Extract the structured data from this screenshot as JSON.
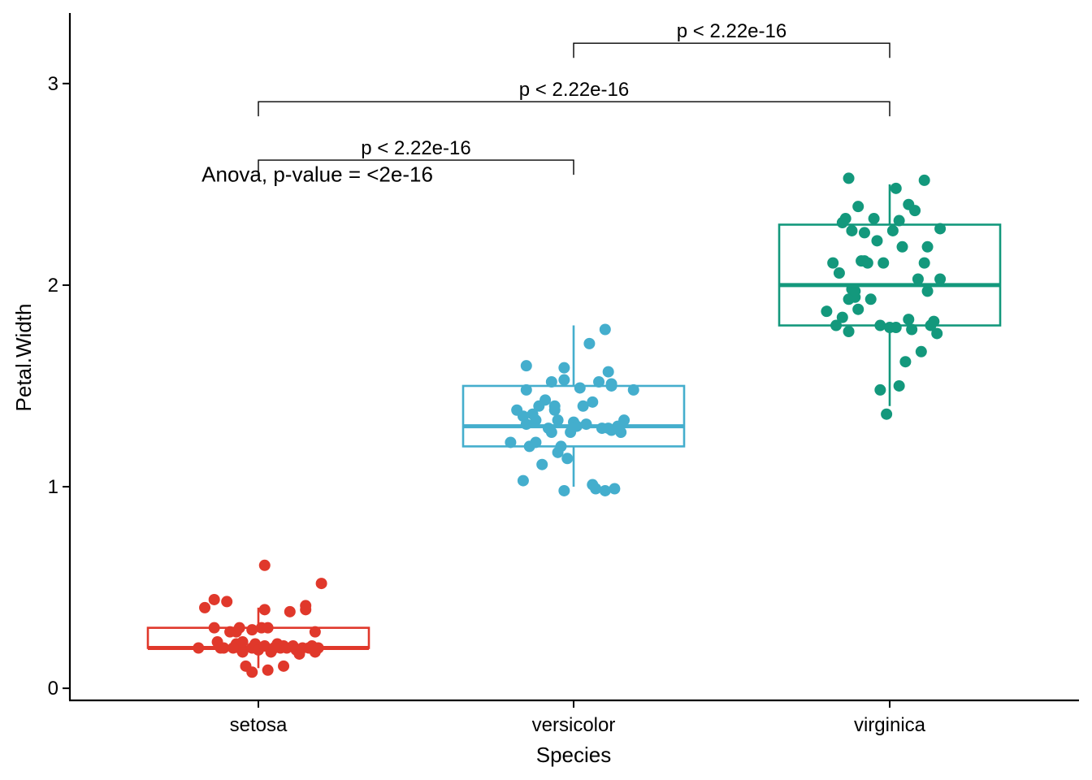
{
  "chart_data": {
    "type": "boxplot",
    "xlabel": "Species",
    "ylabel": "Petal.Width",
    "ylim": [
      -0.06,
      3.35
    ],
    "y_ticks": [
      0,
      1,
      2,
      3
    ],
    "categories": [
      "setosa",
      "versicolor",
      "virginica"
    ],
    "grid": false,
    "legend": "none",
    "series": [
      {
        "category": "setosa",
        "color": "#E0382B",
        "box": {
          "min": 0.1,
          "q1": 0.2,
          "median": 0.2,
          "q3": 0.3,
          "max": 0.4
        },
        "points": [
          {
            "x": -0.19,
            "y": 0.2
          },
          {
            "x": -0.17,
            "y": 0.4
          },
          {
            "x": -0.14,
            "y": 0.3
          },
          {
            "x": -0.12,
            "y": 0.2
          },
          {
            "x": -0.14,
            "y": 0.44
          },
          {
            "x": -0.1,
            "y": 0.43
          },
          {
            "x": -0.09,
            "y": 0.28
          },
          {
            "x": -0.11,
            "y": 0.2
          },
          {
            "x": -0.07,
            "y": 0.22
          },
          {
            "x": -0.06,
            "y": 0.2
          },
          {
            "x": -0.05,
            "y": 0.18
          },
          {
            "x": -0.04,
            "y": 0.11
          },
          {
            "x": -0.07,
            "y": 0.28
          },
          {
            "x": -0.02,
            "y": 0.2
          },
          {
            "x": -0.01,
            "y": 0.22
          },
          {
            "x": -0.02,
            "y": 0.29
          },
          {
            "x": 0.0,
            "y": 0.19
          },
          {
            "x": 0.02,
            "y": 0.21
          },
          {
            "x": -0.05,
            "y": 0.23
          },
          {
            "x": -0.06,
            "y": 0.3
          },
          {
            "x": 0.02,
            "y": 0.61
          },
          {
            "x": 0.01,
            "y": 0.3
          },
          {
            "x": -0.02,
            "y": 0.08
          },
          {
            "x": 0.03,
            "y": 0.3
          },
          {
            "x": 0.04,
            "y": 0.18
          },
          {
            "x": 0.05,
            "y": 0.2
          },
          {
            "x": 0.06,
            "y": 0.22
          },
          {
            "x": 0.03,
            "y": 0.09
          },
          {
            "x": 0.02,
            "y": 0.39
          },
          {
            "x": 0.07,
            "y": 0.2
          },
          {
            "x": 0.08,
            "y": 0.21
          },
          {
            "x": 0.08,
            "y": 0.11
          },
          {
            "x": 0.09,
            "y": 0.2
          },
          {
            "x": 0.1,
            "y": 0.38
          },
          {
            "x": 0.11,
            "y": 0.21
          },
          {
            "x": 0.12,
            "y": 0.19
          },
          {
            "x": 0.13,
            "y": 0.17
          },
          {
            "x": 0.14,
            "y": 0.2
          },
          {
            "x": 0.15,
            "y": 0.41
          },
          {
            "x": 0.15,
            "y": 0.39
          },
          {
            "x": 0.16,
            "y": 0.2
          },
          {
            "x": 0.17,
            "y": 0.21
          },
          {
            "x": 0.18,
            "y": 0.18
          },
          {
            "x": 0.18,
            "y": 0.28
          },
          {
            "x": 0.19,
            "y": 0.2
          },
          {
            "x": 0.2,
            "y": 0.52
          },
          {
            "x": 0.18,
            "y": 0.2
          },
          {
            "x": -0.08,
            "y": 0.2
          },
          {
            "x": -0.13,
            "y": 0.23
          },
          {
            "x": 0.05,
            "y": 0.2
          }
        ]
      },
      {
        "category": "versicolor",
        "color": "#44AECD",
        "box": {
          "min": 1.0,
          "q1": 1.2,
          "median": 1.3,
          "q3": 1.5,
          "max": 1.8
        },
        "points": [
          {
            "x": -0.2,
            "y": 1.22
          },
          {
            "x": -0.18,
            "y": 1.38
          },
          {
            "x": -0.16,
            "y": 1.35
          },
          {
            "x": -0.15,
            "y": 1.48
          },
          {
            "x": -0.15,
            "y": 1.6
          },
          {
            "x": -0.14,
            "y": 1.2
          },
          {
            "x": -0.15,
            "y": 1.31
          },
          {
            "x": -0.16,
            "y": 1.03
          },
          {
            "x": -0.12,
            "y": 1.22
          },
          {
            "x": -0.12,
            "y": 1.33
          },
          {
            "x": -0.11,
            "y": 1.4
          },
          {
            "x": -0.1,
            "y": 1.11
          },
          {
            "x": -0.09,
            "y": 1.43
          },
          {
            "x": -0.08,
            "y": 1.29
          },
          {
            "x": -0.07,
            "y": 1.52
          },
          {
            "x": -0.06,
            "y": 1.38
          },
          {
            "x": -0.06,
            "y": 1.4
          },
          {
            "x": -0.05,
            "y": 1.17
          },
          {
            "x": -0.05,
            "y": 1.33
          },
          {
            "x": -0.04,
            "y": 1.2
          },
          {
            "x": -0.03,
            "y": 1.53
          },
          {
            "x": -0.03,
            "y": 1.59
          },
          {
            "x": -0.02,
            "y": 1.14
          },
          {
            "x": -0.03,
            "y": 0.98
          },
          {
            "x": -0.01,
            "y": 1.27
          },
          {
            "x": 0.0,
            "y": 1.32
          },
          {
            "x": 0.01,
            "y": 1.3
          },
          {
            "x": 0.02,
            "y": 1.49
          },
          {
            "x": 0.03,
            "y": 1.4
          },
          {
            "x": 0.05,
            "y": 1.71
          },
          {
            "x": 0.06,
            "y": 1.42
          },
          {
            "x": 0.06,
            "y": 1.01
          },
          {
            "x": 0.07,
            "y": 0.99
          },
          {
            "x": 0.08,
            "y": 1.52
          },
          {
            "x": 0.1,
            "y": 1.78
          },
          {
            "x": 0.1,
            "y": 0.98
          },
          {
            "x": 0.11,
            "y": 1.29
          },
          {
            "x": 0.11,
            "y": 1.57
          },
          {
            "x": 0.12,
            "y": 1.51
          },
          {
            "x": 0.12,
            "y": 1.28
          },
          {
            "x": 0.13,
            "y": 0.99
          },
          {
            "x": 0.15,
            "y": 1.27
          },
          {
            "x": 0.16,
            "y": 1.33
          },
          {
            "x": 0.19,
            "y": 1.48
          },
          {
            "x": 0.12,
            "y": 1.5
          },
          {
            "x": 0.14,
            "y": 1.3
          },
          {
            "x": -0.07,
            "y": 1.27
          },
          {
            "x": 0.04,
            "y": 1.31
          },
          {
            "x": -0.13,
            "y": 1.36
          },
          {
            "x": 0.09,
            "y": 1.29
          }
        ]
      },
      {
        "category": "virginica",
        "color": "#13987C",
        "box": {
          "min": 1.4,
          "q1": 1.8,
          "median": 2.0,
          "q3": 2.3,
          "max": 2.5
        },
        "points": [
          {
            "x": -0.2,
            "y": 1.87
          },
          {
            "x": -0.18,
            "y": 2.11
          },
          {
            "x": -0.17,
            "y": 1.8
          },
          {
            "x": -0.16,
            "y": 2.06
          },
          {
            "x": -0.15,
            "y": 2.31
          },
          {
            "x": -0.15,
            "y": 1.84
          },
          {
            "x": -0.14,
            "y": 2.33
          },
          {
            "x": -0.13,
            "y": 1.77
          },
          {
            "x": -0.13,
            "y": 1.93
          },
          {
            "x": -0.12,
            "y": 2.27
          },
          {
            "x": -0.12,
            "y": 1.98
          },
          {
            "x": -0.11,
            "y": 1.94
          },
          {
            "x": -0.11,
            "y": 1.97
          },
          {
            "x": -0.1,
            "y": 2.39
          },
          {
            "x": -0.1,
            "y": 1.88
          },
          {
            "x": -0.09,
            "y": 2.12
          },
          {
            "x": -0.08,
            "y": 2.12
          },
          {
            "x": -0.07,
            "y": 2.11
          },
          {
            "x": -0.06,
            "y": 1.93
          },
          {
            "x": -0.05,
            "y": 2.33
          },
          {
            "x": -0.04,
            "y": 2.22
          },
          {
            "x": -0.03,
            "y": 1.8
          },
          {
            "x": -0.02,
            "y": 2.11
          },
          {
            "x": -0.01,
            "y": 1.36
          },
          {
            "x": 0.0,
            "y": 1.79
          },
          {
            "x": 0.01,
            "y": 2.27
          },
          {
            "x": 0.02,
            "y": 2.48
          },
          {
            "x": 0.02,
            "y": 1.79
          },
          {
            "x": 0.03,
            "y": 2.32
          },
          {
            "x": 0.04,
            "y": 2.19
          },
          {
            "x": 0.05,
            "y": 1.62
          },
          {
            "x": 0.06,
            "y": 1.83
          },
          {
            "x": 0.06,
            "y": 2.4
          },
          {
            "x": 0.07,
            "y": 1.78
          },
          {
            "x": 0.08,
            "y": 2.37
          },
          {
            "x": 0.09,
            "y": 2.03
          },
          {
            "x": 0.1,
            "y": 1.67
          },
          {
            "x": 0.11,
            "y": 2.11
          },
          {
            "x": 0.12,
            "y": 1.97
          },
          {
            "x": 0.12,
            "y": 2.19
          },
          {
            "x": 0.13,
            "y": 1.8
          },
          {
            "x": 0.14,
            "y": 1.82
          },
          {
            "x": 0.15,
            "y": 1.76
          },
          {
            "x": 0.16,
            "y": 2.03
          },
          {
            "x": 0.11,
            "y": 2.52
          },
          {
            "x": 0.16,
            "y": 2.28
          },
          {
            "x": -0.13,
            "y": 2.53
          },
          {
            "x": -0.03,
            "y": 1.48
          },
          {
            "x": 0.03,
            "y": 1.5
          },
          {
            "x": -0.08,
            "y": 2.26
          }
        ]
      }
    ],
    "annotations": [
      {
        "text": "Anova, p-value = <2e-16",
        "x": -0.18,
        "y": 2.55
      }
    ],
    "comparisons": [
      {
        "from": 0,
        "to": 1,
        "y": 2.62,
        "label": "p < 2.22e-16"
      },
      {
        "from": 0,
        "to": 2,
        "y": 2.91,
        "label": "p < 2.22e-16"
      },
      {
        "from": 1,
        "to": 2,
        "y": 3.2,
        "label": "p < 2.22e-16"
      }
    ]
  }
}
